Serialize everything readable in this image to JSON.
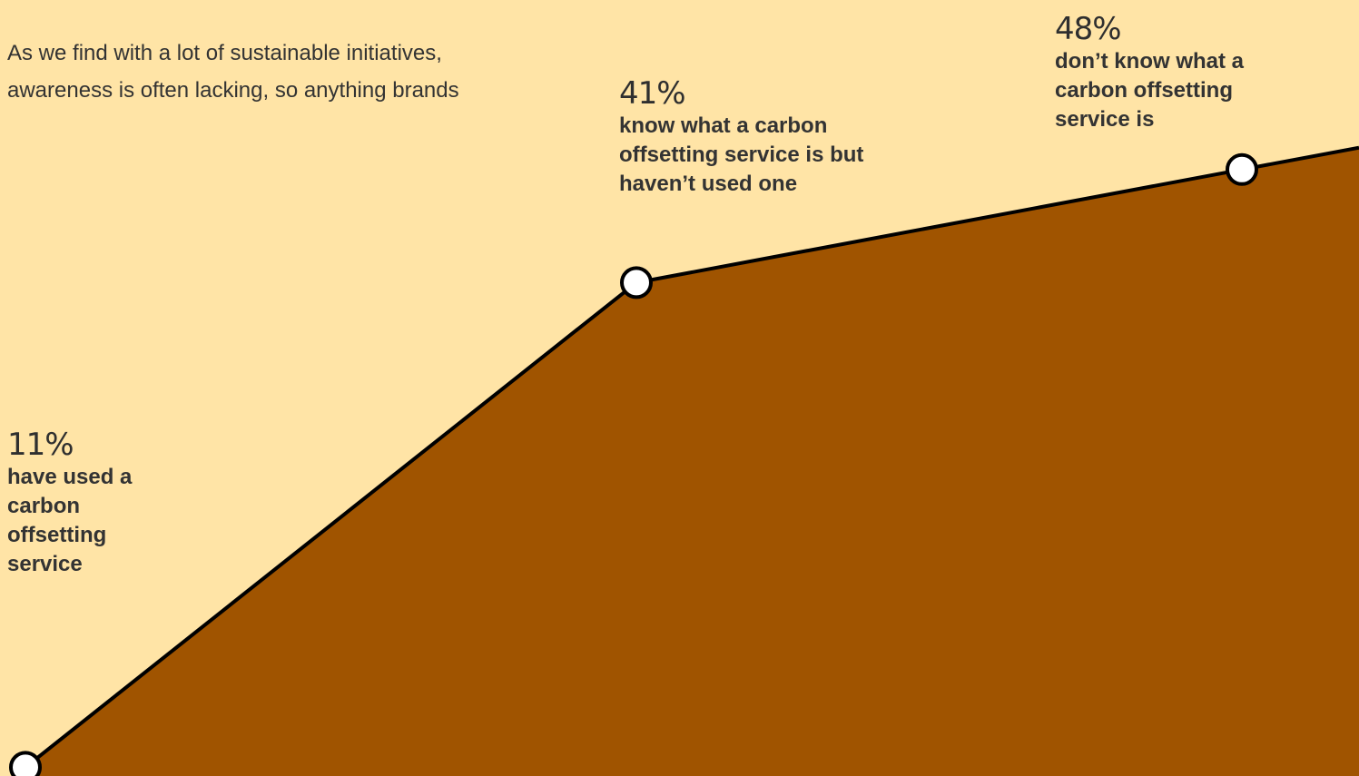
{
  "intro_text": "As we find with a lot of sustainable initiatives, awareness is often lacking, so anything brands",
  "colors": {
    "background": "#FFE4A6",
    "area_fill": "#A05400",
    "line": "#000000",
    "marker_fill": "#FFFFFF"
  },
  "chart_data": {
    "type": "area",
    "title": "",
    "xlabel": "",
    "ylabel": "",
    "points": [
      {
        "value": 11,
        "label": "11%",
        "description": "have used a carbon offsetting service"
      },
      {
        "value": 41,
        "label": "41%",
        "description": "know what a carbon offsetting service is but haven’t used one"
      },
      {
        "value": 48,
        "label": "48%",
        "description": "don’t know what a carbon offsetting service is"
      }
    ],
    "grid": false,
    "legend": "none"
  }
}
